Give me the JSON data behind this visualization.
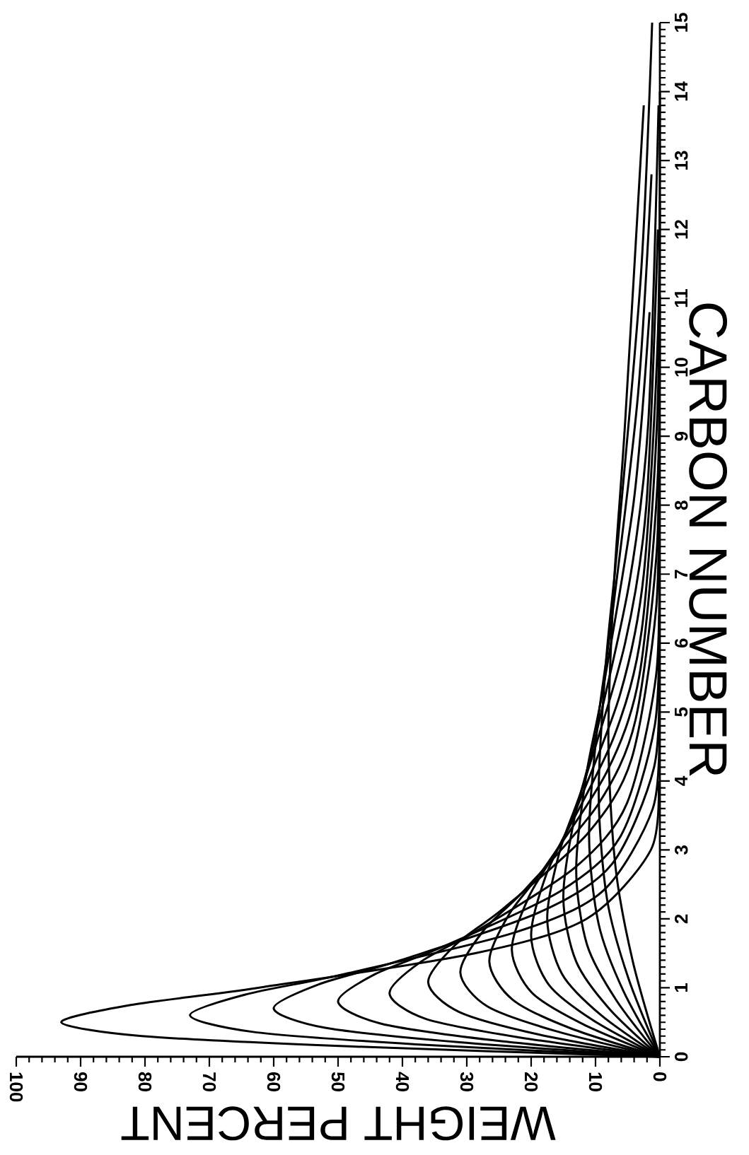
{
  "chart_data": {
    "type": "line",
    "xlabel": "WEIGHT PERCENT",
    "ylabel": "CARBON NUMBER",
    "xlim": [
      100,
      0
    ],
    "ylim": [
      0,
      15
    ],
    "xticks": [
      0,
      10,
      20,
      30,
      40,
      50,
      60,
      70,
      80,
      90,
      100
    ],
    "yticks": [
      0,
      1,
      2,
      3,
      4,
      5,
      6,
      7,
      8,
      9,
      10,
      11,
      12,
      13,
      14,
      15
    ],
    "grid": false,
    "marker": "none",
    "line_style": "solid",
    "series": [
      {
        "color": "#000000",
        "values": [
          0,
          0.15,
          0.3,
          0.5,
          0.75,
          1,
          1.5,
          2,
          3,
          4
        ],
        "x": [
          0,
          48.3,
          80.5,
          93,
          82.2,
          62.4,
          28.8,
          11.4,
          1.4,
          0.2
        ]
      },
      {
        "color": "#000000",
        "values": [
          0,
          0.18,
          0.36,
          0.6,
          0.9,
          1.2,
          1.8,
          2.4,
          3.6,
          4.8
        ],
        "x": [
          0,
          37.9,
          63.2,
          73,
          64.5,
          49,
          22.6,
          8.9,
          1.1,
          0.1
        ]
      },
      {
        "color": "#000000",
        "values": [
          0,
          0.21,
          0.42,
          0.7,
          1.05,
          1.4,
          2.1,
          2.8,
          4.2,
          5.6
        ],
        "x": [
          0,
          31.1,
          52,
          60,
          53,
          40.3,
          18.6,
          7.4,
          0.9,
          0.1
        ]
      },
      {
        "color": "#000000",
        "values": [
          0,
          0.24,
          0.48,
          0.8,
          1.2,
          1.6,
          2.4,
          3.2,
          4.8,
          6.4
        ],
        "x": [
          0,
          26,
          43.3,
          50,
          44.2,
          33.6,
          15.5,
          6.1,
          0.8,
          0.1
        ]
      },
      {
        "color": "#000000",
        "values": [
          0,
          0.28,
          0.55,
          0.92,
          1.38,
          1.84,
          2.76,
          3.68,
          5.52,
          7.36
        ],
        "x": [
          0,
          21.8,
          36.4,
          42,
          37.1,
          28.2,
          13,
          5.1,
          0.6,
          0.1
        ]
      },
      {
        "color": "#000000",
        "values": [
          0,
          0.32,
          0.65,
          1.08,
          1.62,
          2.16,
          3.24,
          4.32,
          6.48,
          8.64
        ],
        "x": [
          0,
          18.7,
          31.2,
          36,
          31.8,
          24.2,
          11.2,
          4.4,
          0.6,
          0.1
        ]
      },
      {
        "color": "#000000",
        "values": [
          0,
          0.37,
          0.73,
          1.22,
          1.83,
          2.44,
          3.66,
          4.88,
          7.32,
          9.76
        ],
        "x": [
          0,
          16.1,
          26.8,
          31,
          27.4,
          20.8,
          9.6,
          3.8,
          0.5,
          0.1
        ]
      },
      {
        "color": "#000000",
        "values": [
          0,
          0.41,
          0.83,
          1.38,
          2.07,
          2.76,
          4.14,
          5.52,
          8.28,
          11.04
        ],
        "x": [
          0,
          13.8,
          22.9,
          26.5,
          23.4,
          17.8,
          8.2,
          3.2,
          0.4,
          0
        ]
      },
      {
        "color": "#000000",
        "values": [
          0,
          0.47,
          0.93,
          1.55,
          2.33,
          3.1,
          4.65,
          6.2,
          9.3,
          12.4
        ],
        "x": [
          0,
          11.9,
          19.9,
          23,
          20.3,
          15.4,
          7.1,
          2.8,
          0.4,
          0
        ]
      },
      {
        "color": "#000000",
        "values": [
          0,
          0.53,
          1.05,
          1.75,
          2.63,
          3.5,
          5.25,
          7,
          10.5,
          14
        ],
        "x": [
          0,
          10.4,
          17.3,
          20,
          17.7,
          13.4,
          6.2,
          2.5,
          0.3,
          0
        ]
      },
      {
        "color": "#000000",
        "values": [
          0,
          0.6,
          1.2,
          2,
          3,
          4,
          6,
          8,
          12
        ],
        "x": [
          0,
          9.1,
          15.2,
          17.5,
          15.5,
          11.7,
          5.4,
          2.1,
          0.3
        ]
      },
      {
        "color": "#000000",
        "values": [
          0,
          0.69,
          1.38,
          2.3,
          3.45,
          4.6,
          6.9,
          9.2,
          13.8
        ],
        "x": [
          0,
          7.8,
          13,
          15,
          13.3,
          10.1,
          4.7,
          1.8,
          0.2
        ]
      },
      {
        "color": "#000000",
        "values": [
          0,
          0.81,
          1.62,
          2.7,
          4.05,
          5.4,
          8.1,
          10.8
        ],
        "x": [
          0,
          6.7,
          11.3,
          13,
          11.5,
          8.7,
          4,
          1.6
        ]
      },
      {
        "color": "#000000",
        "values": [
          0,
          0.96,
          1.92,
          3.2,
          4.8,
          6.4,
          9.6,
          12.8
        ],
        "x": [
          0,
          5.7,
          9.5,
          11,
          9.7,
          7.4,
          3.4,
          1.3
        ]
      },
      {
        "color": "#000000",
        "values": [
          0,
          1.14,
          2.28,
          3.8,
          5.7,
          7.6,
          11.4,
          15
        ],
        "x": [
          0,
          4.9,
          8.2,
          9.5,
          8.4,
          6.4,
          2.9,
          1.2
        ]
      },
      {
        "color": "#000000",
        "values": [
          0,
          1.38,
          2.76,
          4.6,
          6.9,
          9.2,
          13.8
        ],
        "x": [
          0,
          4.2,
          6.9,
          8,
          7.1,
          5.4,
          2.5
        ]
      }
    ]
  }
}
